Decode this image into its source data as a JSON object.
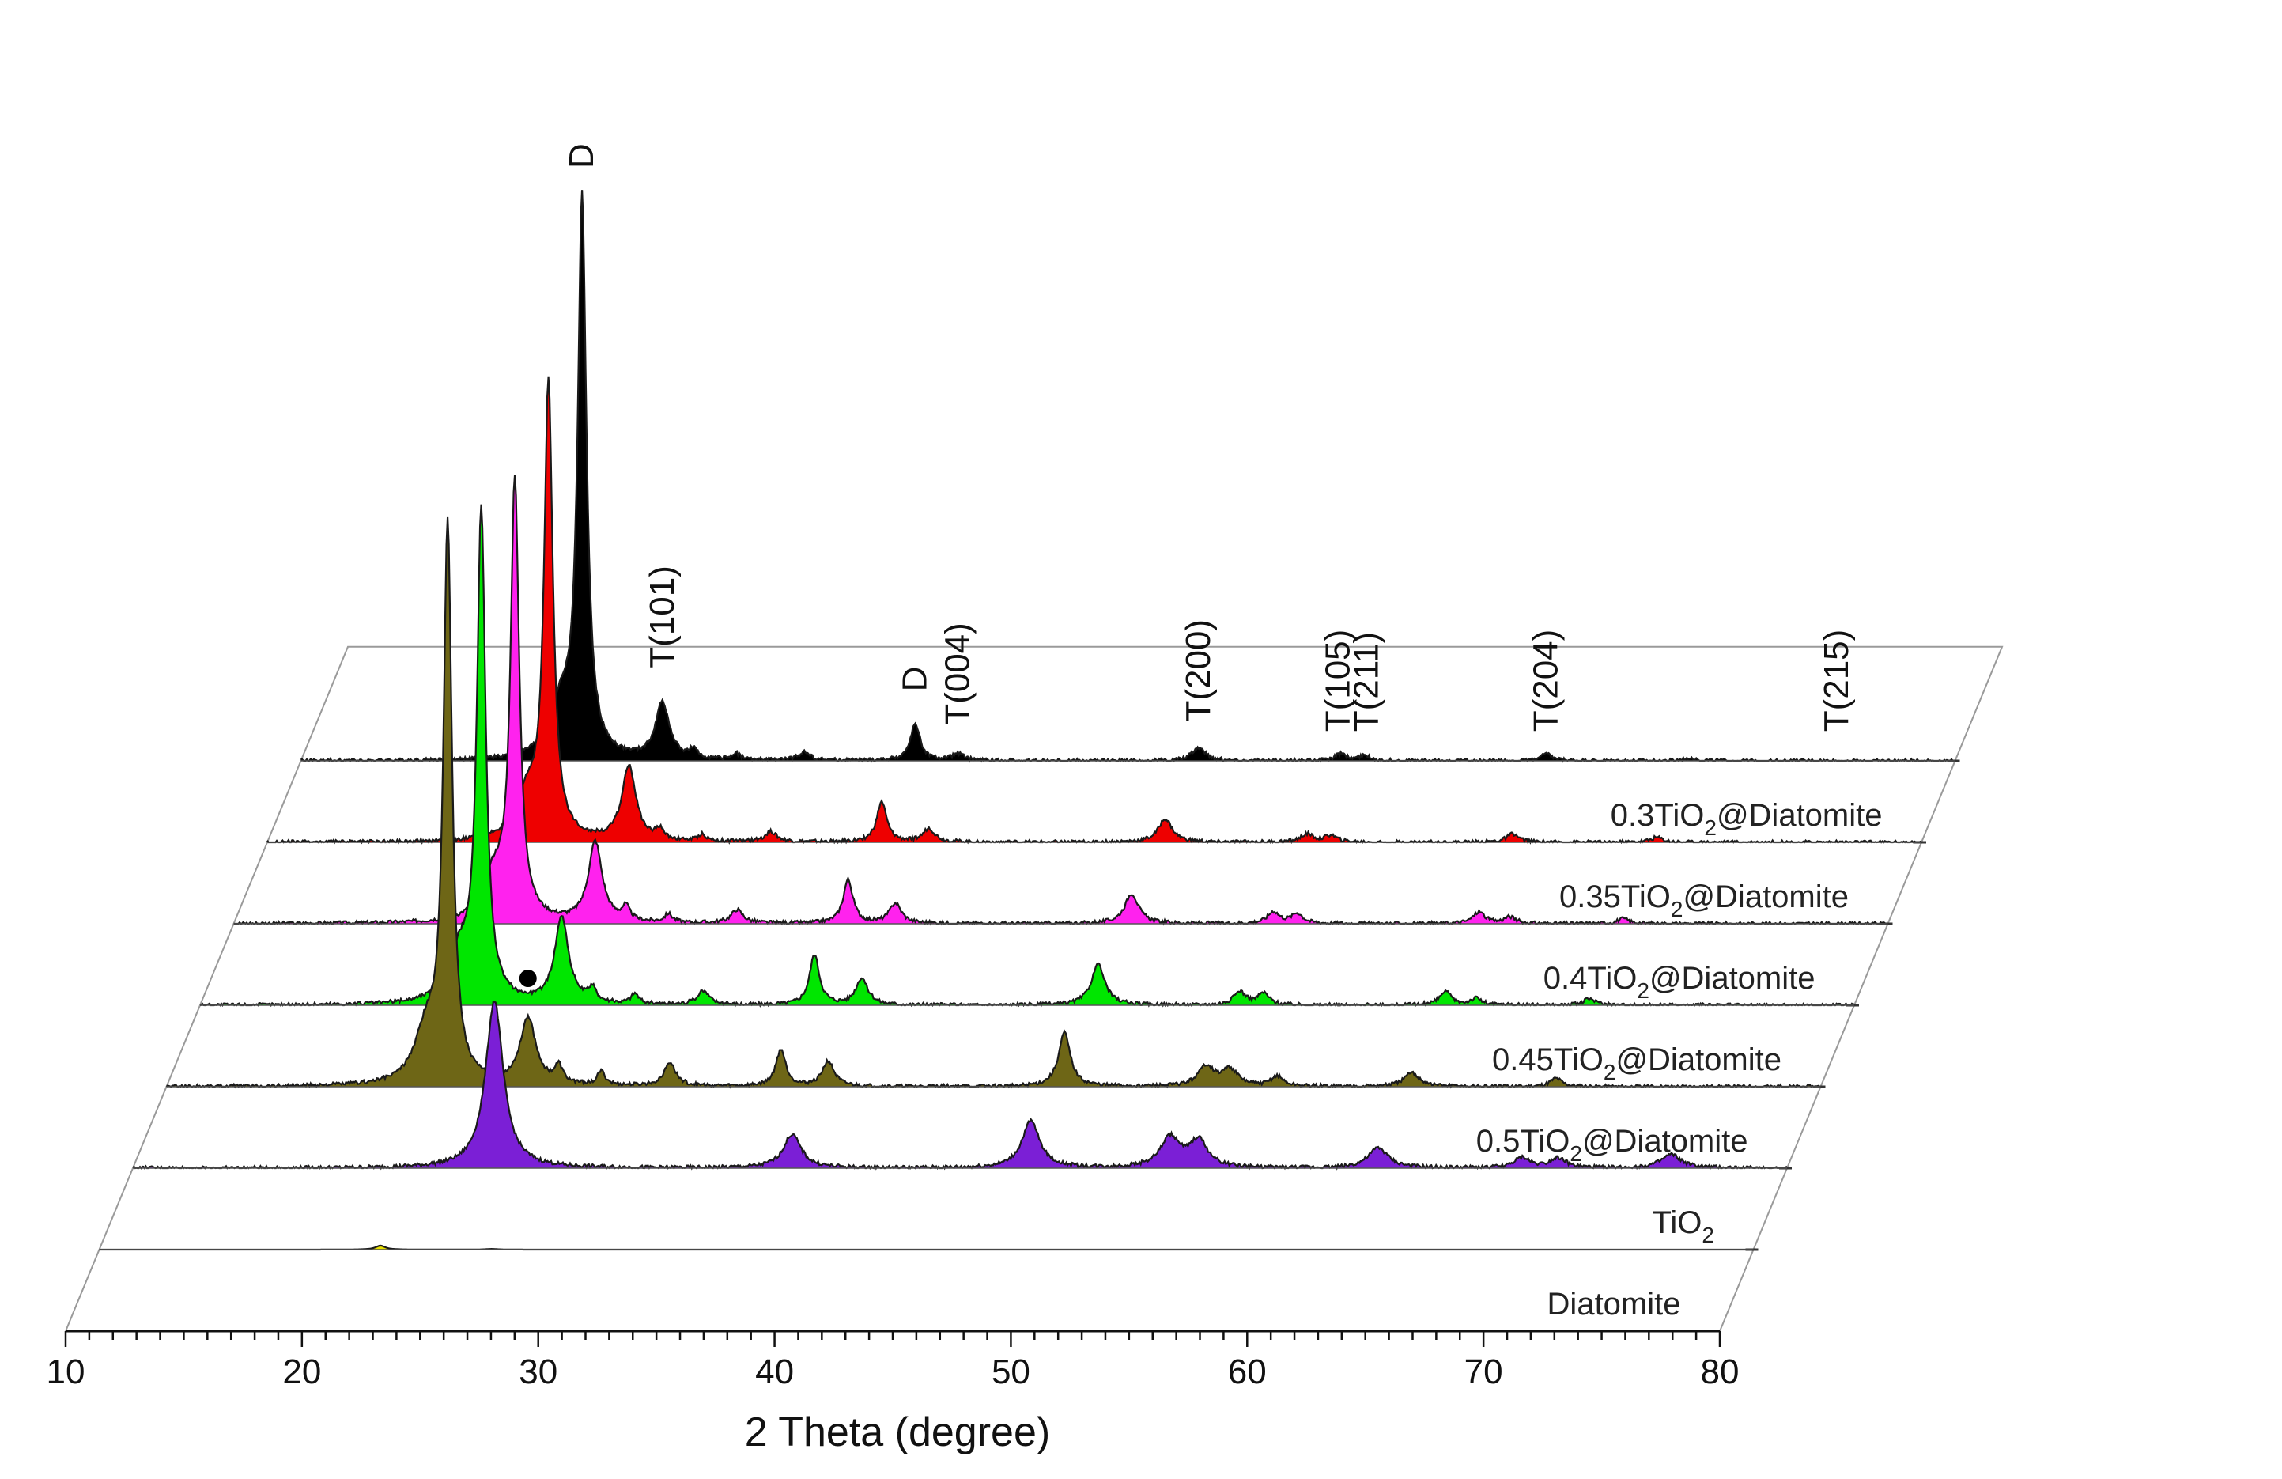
{
  "chart_data": {
    "type": "line",
    "subtype": "stacked-3d-xrd",
    "xlabel": "2 Theta (degree)",
    "xlim": [
      10,
      80
    ],
    "x_ticks": [
      "10",
      "20",
      "30",
      "40",
      "50",
      "60",
      "70",
      "80"
    ],
    "series": [
      {
        "name": "Diatomite",
        "label_main": "Diatomite",
        "label_sub": "",
        "label_tail": "",
        "color": "#e8e000",
        "height_scale": 0.2,
        "peaks": [
          [
            21.9,
            12,
            0.25
          ],
          [
            26.6,
            2,
            0.3
          ]
        ]
      },
      {
        "name": "TiO2",
        "label_main": "TiO",
        "label_sub": "2",
        "label_tail": "",
        "color": "#7b1fd6",
        "height_scale": 1,
        "peaks": [
          [
            25.3,
            100,
            0.45
          ],
          [
            37.9,
            20,
            0.45
          ],
          [
            48.0,
            28,
            0.45
          ],
          [
            53.9,
            18,
            0.5
          ],
          [
            55.1,
            16,
            0.45
          ],
          [
            62.7,
            12,
            0.5
          ],
          [
            68.8,
            6,
            0.4
          ],
          [
            70.3,
            6,
            0.4
          ],
          [
            75.1,
            8,
            0.5
          ]
        ]
      },
      {
        "name": "0.5TiO2@Diatomite",
        "label_main": "0.5TiO",
        "label_sub": "2",
        "label_tail": "@Diatomite",
        "color": "#6e6616",
        "height_scale": 1,
        "peaks": [
          [
            21.9,
            330,
            0.22
          ],
          [
            21.0,
            30,
            0.6
          ],
          [
            25.3,
            40,
            0.4
          ],
          [
            26.6,
            10,
            0.2
          ],
          [
            28.4,
            8,
            0.2
          ],
          [
            31.3,
            14,
            0.3
          ],
          [
            36.0,
            22,
            0.25
          ],
          [
            38.0,
            15,
            0.3
          ],
          [
            48.0,
            32,
            0.3
          ],
          [
            54.0,
            12,
            0.4
          ],
          [
            55.0,
            10,
            0.4
          ],
          [
            57.0,
            6,
            0.3
          ],
          [
            62.7,
            8,
            0.4
          ],
          [
            68.8,
            5,
            0.3
          ]
        ]
      },
      {
        "name": "0.45TiO2@Diatomite",
        "label_main": "0.45TiO",
        "label_sub": "2",
        "label_tail": "@Diatomite",
        "color": "#00e600",
        "height_scale": 1,
        "peaks": [
          [
            21.9,
            290,
            0.22
          ],
          [
            21.0,
            28,
            0.6
          ],
          [
            25.3,
            52,
            0.35
          ],
          [
            26.6,
            8,
            0.2
          ],
          [
            28.4,
            6,
            0.2
          ],
          [
            31.3,
            8,
            0.3
          ],
          [
            36.0,
            30,
            0.25
          ],
          [
            38.0,
            16,
            0.3
          ],
          [
            48.0,
            24,
            0.35
          ],
          [
            54.0,
            8,
            0.3
          ],
          [
            55.0,
            7,
            0.3
          ],
          [
            62.7,
            8,
            0.3
          ],
          [
            64.0,
            4,
            0.3
          ],
          [
            68.8,
            4,
            0.3
          ]
        ]
      },
      {
        "name": "0.4TiO2@Diatomite",
        "label_main": "0.4TiO",
        "label_sub": "2",
        "label_tail": "@Diatomite",
        "color": "#ff22ee",
        "height_scale": 1,
        "peaks": [
          [
            21.9,
            260,
            0.22
          ],
          [
            21.0,
            26,
            0.6
          ],
          [
            25.3,
            48,
            0.35
          ],
          [
            26.6,
            8,
            0.2
          ],
          [
            28.4,
            5,
            0.2
          ],
          [
            31.3,
            8,
            0.3
          ],
          [
            36.0,
            26,
            0.25
          ],
          [
            38.0,
            12,
            0.3
          ],
          [
            48.0,
            18,
            0.35
          ],
          [
            54.0,
            7,
            0.3
          ],
          [
            55.0,
            6,
            0.3
          ],
          [
            62.7,
            7,
            0.3
          ],
          [
            64.0,
            4,
            0.3
          ],
          [
            68.8,
            3,
            0.3
          ]
        ]
      },
      {
        "name": "0.35TiO2@Diatomite",
        "label_main": "0.35TiO",
        "label_sub": "2",
        "label_tail": "@Diatomite",
        "color": "#ee0000",
        "height_scale": 1,
        "peaks": [
          [
            21.9,
            270,
            0.22
          ],
          [
            21.0,
            26,
            0.6
          ],
          [
            25.3,
            45,
            0.35
          ],
          [
            26.6,
            6,
            0.2
          ],
          [
            28.4,
            4,
            0.2
          ],
          [
            31.3,
            6,
            0.3
          ],
          [
            36.0,
            24,
            0.25
          ],
          [
            38.0,
            8,
            0.3
          ],
          [
            48.0,
            14,
            0.35
          ],
          [
            54.0,
            5,
            0.3
          ],
          [
            55.0,
            4,
            0.3
          ],
          [
            62.7,
            5,
            0.3
          ],
          [
            68.8,
            3,
            0.3
          ]
        ]
      },
      {
        "name": "0.3TiO2@Diatomite",
        "label_main": "0.3TiO",
        "label_sub": "2",
        "label_tail": "@Diatomite",
        "color": "#000000",
        "height_scale": 1,
        "peaks": [
          [
            21.9,
            330,
            0.22
          ],
          [
            21.0,
            30,
            0.6
          ],
          [
            25.3,
            34,
            0.35
          ],
          [
            26.6,
            5,
            0.2
          ],
          [
            28.4,
            4,
            0.2
          ],
          [
            31.3,
            5,
            0.3
          ],
          [
            36.0,
            22,
            0.25
          ],
          [
            37.8,
            4,
            0.3
          ],
          [
            48.0,
            8,
            0.35
          ],
          [
            54.0,
            4,
            0.3
          ],
          [
            55.0,
            3,
            0.3
          ],
          [
            62.7,
            4,
            0.3
          ],
          [
            68.8,
            2,
            0.3
          ]
        ]
      }
    ],
    "annotations": {
      "peak_labels": [
        {
          "text": "D",
          "x": 21.9,
          "y": 342
        },
        {
          "text": "T(101)",
          "x": 25.3,
          "y": 44
        },
        {
          "text": "D",
          "x": 36.0,
          "y": 30
        },
        {
          "text": "T(004)",
          "x": 37.8,
          "y": 10
        },
        {
          "text": "T(200)",
          "x": 48.0,
          "y": 12
        },
        {
          "text": "T(105)",
          "x": 53.9,
          "y": 6
        },
        {
          "text": "T(211)",
          "x": 55.1,
          "y": 6
        },
        {
          "text": "T(204)",
          "x": 62.7,
          "y": 6
        },
        {
          "text": "T(215)",
          "x": 75.0,
          "y": 6
        }
      ],
      "marker": {
        "symbol": "dot",
        "series": "0.5TiO2@Diatomite",
        "x": 25.3,
        "y": 58
      }
    }
  }
}
